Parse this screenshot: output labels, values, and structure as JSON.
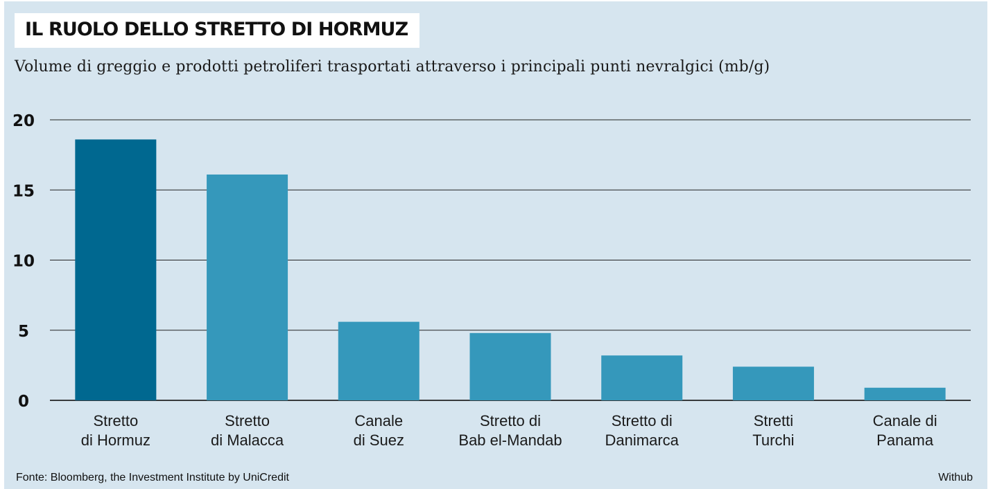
{
  "title": "IL RUOLO DELLO STRETTO DI HORMUZ",
  "subtitle": "Volume di greggio e prodotti petroliferi trasportati attraverso i principali punti nevralgici (mb/g)",
  "source": "Fonte: Bloomberg, the Investment Institute by UniCredit",
  "credit": "Withub",
  "colors": {
    "background": "#d6e5ef",
    "highlight": "#006890",
    "bar": "#3598bb",
    "grid": "#222222"
  },
  "chart_data": {
    "type": "bar",
    "categories": [
      [
        "Stretto",
        "di Hormuz"
      ],
      [
        "Stretto",
        "di Malacca"
      ],
      [
        "Canale",
        "di Suez"
      ],
      [
        "Stretto di",
        "Bab el-Mandab"
      ],
      [
        "Stretto di",
        "Danimarca"
      ],
      [
        "Stretti",
        "Turchi"
      ],
      [
        "Canale di",
        "Panama"
      ]
    ],
    "values": [
      18.6,
      16.1,
      5.6,
      4.8,
      3.2,
      2.4,
      0.9
    ],
    "highlight_index": 0,
    "ylim": [
      0,
      20
    ],
    "yticks": [
      0,
      5,
      10,
      15,
      20
    ],
    "grid": true
  }
}
